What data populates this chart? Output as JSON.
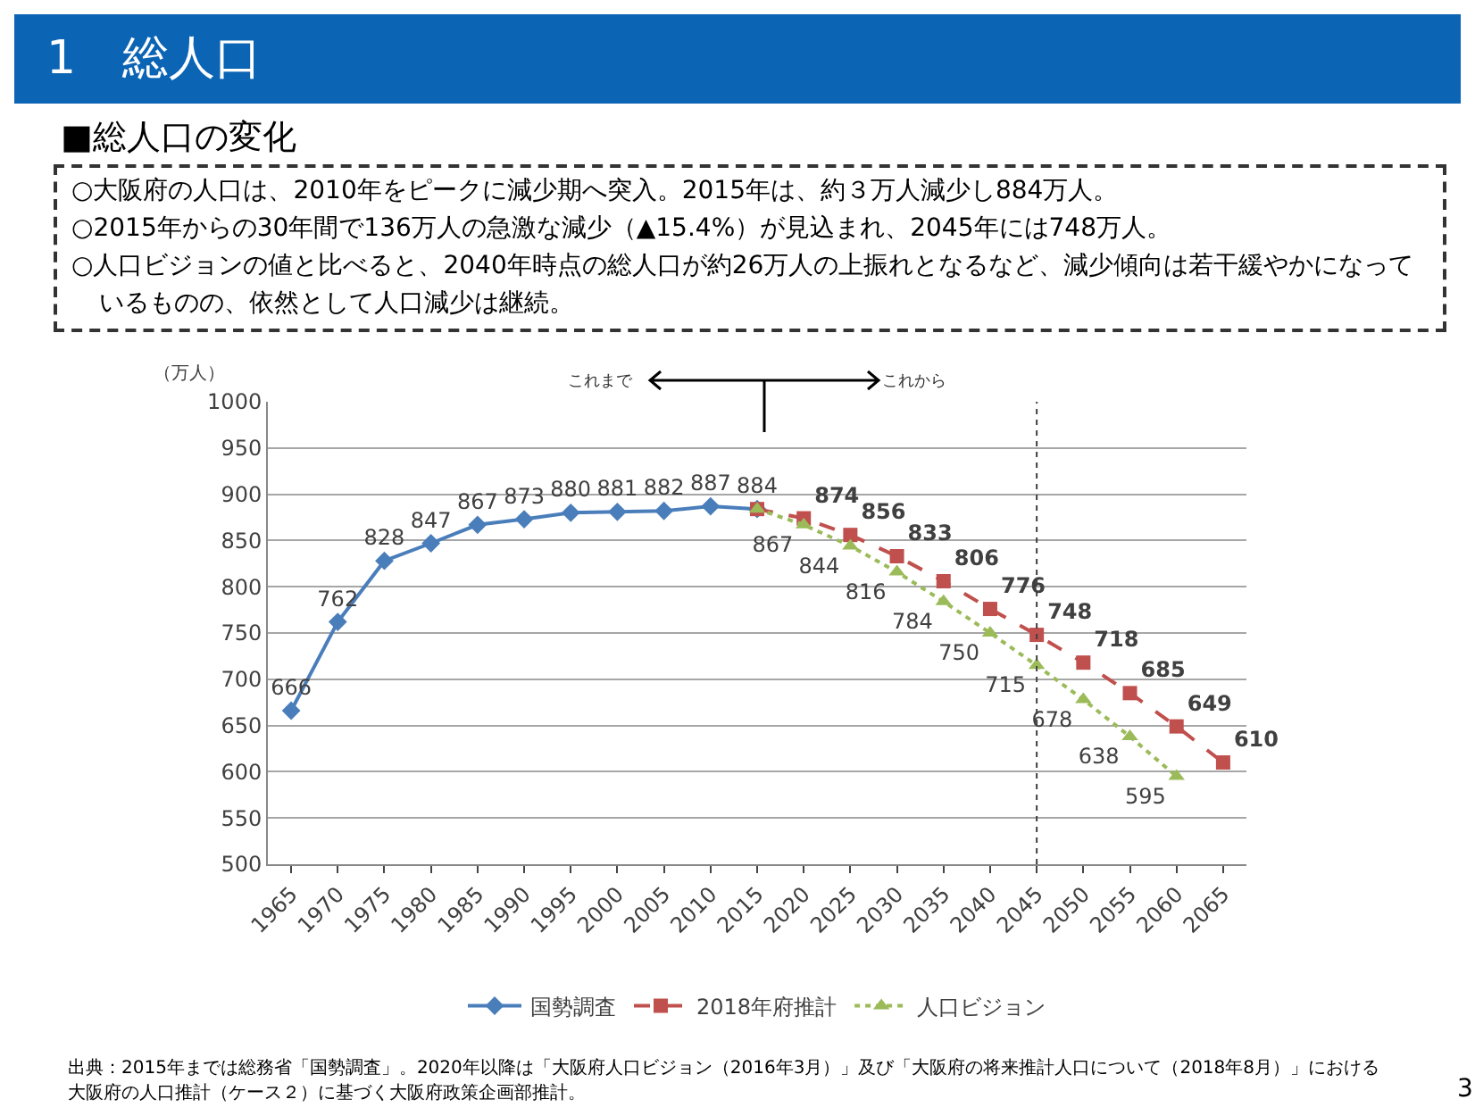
{
  "chart_data": {
    "type": "line",
    "title": "1　総人口",
    "subtitle": "■総人口の変化",
    "ylabel": "（万人）",
    "categories": [
      "1965",
      "1970",
      "1975",
      "1980",
      "1985",
      "1990",
      "1995",
      "2000",
      "2005",
      "2010",
      "2015",
      "2020",
      "2025",
      "2030",
      "2035",
      "2040",
      "2045",
      "2050",
      "2055",
      "2060",
      "2065"
    ],
    "series": [
      {
        "name": "国勢調査",
        "color": "#4a7ebb",
        "marker": "diamond",
        "line_style": "solid",
        "values": [
          666,
          762,
          828,
          847,
          867,
          873,
          880,
          881,
          882,
          887,
          884,
          null,
          null,
          null,
          null,
          null,
          null,
          null,
          null,
          null,
          null
        ],
        "value_labels": [
          "666",
          "762",
          "828",
          "847",
          "867",
          "873",
          "880",
          "881",
          "882",
          "887",
          "884",
          null,
          null,
          null,
          null,
          null,
          null,
          null,
          null,
          null,
          null
        ]
      },
      {
        "name": "2018年府推計",
        "color": "#c0504d",
        "marker": "square",
        "line_style": "dashed",
        "values": [
          null,
          null,
          null,
          null,
          null,
          null,
          null,
          null,
          null,
          null,
          884,
          874,
          856,
          833,
          806,
          776,
          748,
          718,
          685,
          649,
          610
        ],
        "value_labels": [
          null,
          null,
          null,
          null,
          null,
          null,
          null,
          null,
          null,
          null,
          null,
          "874",
          "856",
          "833",
          "806",
          "776",
          "748",
          "718",
          "685",
          "649",
          "610"
        ]
      },
      {
        "name": "人口ビジョン",
        "color": "#9bbb59",
        "marker": "triangle",
        "line_style": "dotted",
        "values": [
          null,
          null,
          null,
          null,
          null,
          null,
          null,
          null,
          null,
          null,
          884,
          867,
          844,
          816,
          784,
          750,
          715,
          678,
          638,
          595,
          null
        ],
        "value_labels": [
          null,
          null,
          null,
          null,
          null,
          null,
          null,
          null,
          null,
          null,
          null,
          "867",
          "844",
          "816",
          "784",
          "750",
          "715",
          "678",
          "638",
          "595",
          null
        ]
      }
    ],
    "ylim": [
      500,
      1000
    ],
    "yticks": [
      500,
      550,
      600,
      650,
      700,
      750,
      800,
      850,
      900,
      950,
      1000
    ],
    "grid": "y",
    "legend": "bottom",
    "ref_lines": [
      {
        "axis": "x",
        "value": "2045",
        "color": "#404040",
        "line_style": "dotted"
      }
    ],
    "annotations": [
      "○大阪府の人口は、2010年をピークに減少期へ突入。2015年は、約３万人減少し884万人。",
      "○2015年からの30年間で136万人の急激な減少（▲15.4%）が見込まれ、2045年には748万人。",
      "○人口ビジョンの値と比べると、2040年時点の総人口が約26万人の上振れとなるなど、減少傾向は若干緩やかになっているものの、依然として人口減少は継続。",
      "これまで",
      "これから",
      "出典：2015年までは総務省「国勢調査」。2020年以降は「大阪府人口ビジョン（2016年3月）」及び「大阪府の将来推計人口について（2018年8月）」における大阪府の人口推計（ケース２）に基づく大阪府政策企画部推計。",
      "3"
    ]
  }
}
